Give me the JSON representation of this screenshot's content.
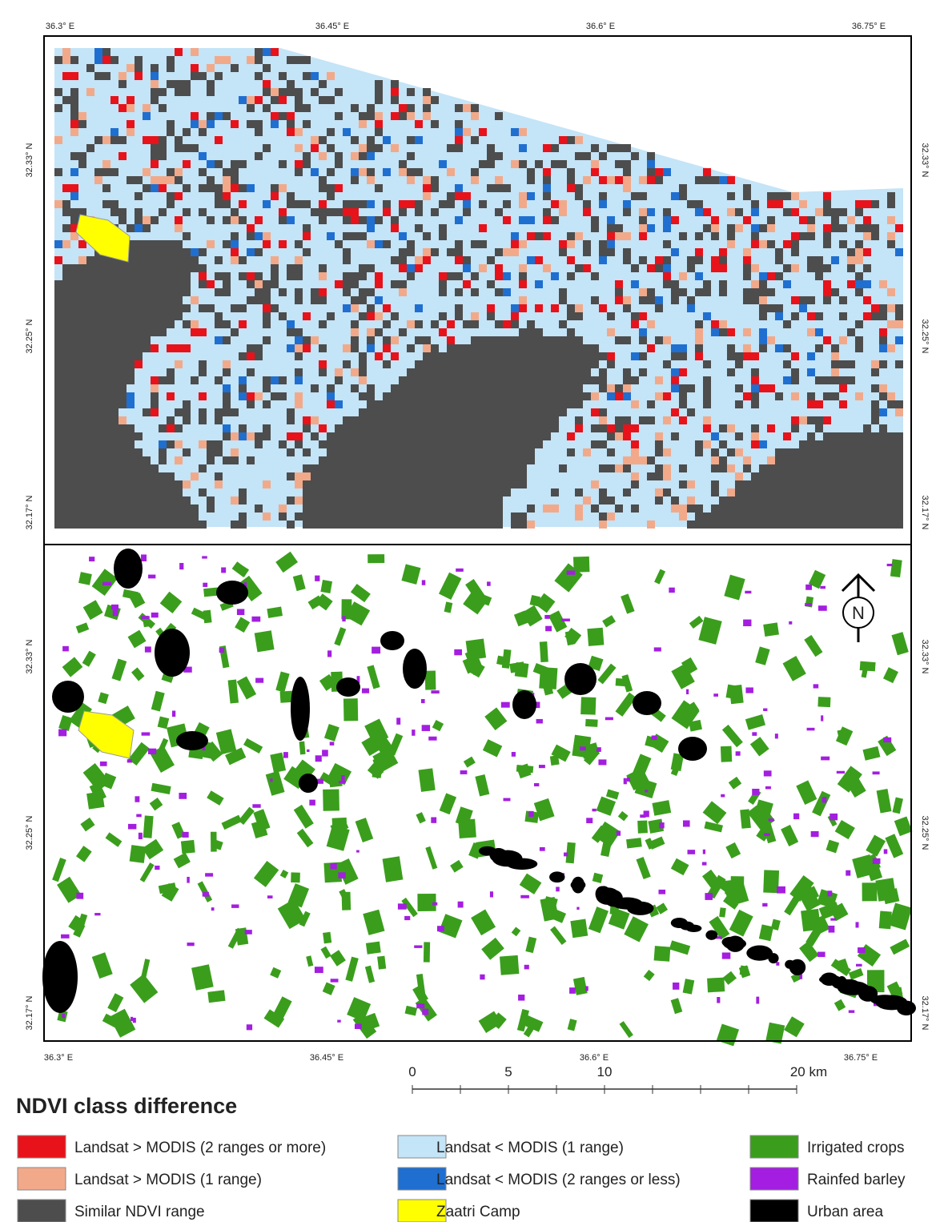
{
  "top_map": {
    "x_labels": [
      "36.3° E",
      "36.45° E",
      "36.6° E",
      "36.75° E"
    ],
    "y_labels": [
      "32.33° N",
      "32.25° N",
      "32.17° N"
    ]
  },
  "bottom_map": {
    "x_labels": [
      "36.3° E",
      "36.45° E",
      "36.6° E",
      "36.75° E"
    ],
    "y_labels": [
      "32.33° N",
      "32.25° N",
      "32.17° N"
    ]
  },
  "north_arrow": "N",
  "scale_bar": {
    "labels": [
      "0",
      "5",
      "10",
      "20 km"
    ]
  },
  "legend": {
    "title": "NDVI class difference",
    "items": [
      {
        "label": "Landsat > MODIS (2 ranges or more)",
        "color": "#e8121a"
      },
      {
        "label": "Landsat > MODIS (1 range)",
        "color": "#f2a98a"
      },
      {
        "label": "Similar NDVI range",
        "color": "#4d4d4d"
      },
      {
        "label": "Landsat < MODIS (1 range)",
        "color": "#c4e4f7"
      },
      {
        "label": "Landsat < MODIS (2 ranges or less)",
        "color": "#1f6fd1"
      },
      {
        "label": "Zaatri Camp",
        "color": "#ffff00"
      },
      {
        "label": "Irrigated crops",
        "color": "#3a9e1c"
      },
      {
        "label": "Rainfed barley",
        "color": "#a31ee0"
      },
      {
        "label": "Urban area",
        "color": "#000000"
      }
    ]
  }
}
